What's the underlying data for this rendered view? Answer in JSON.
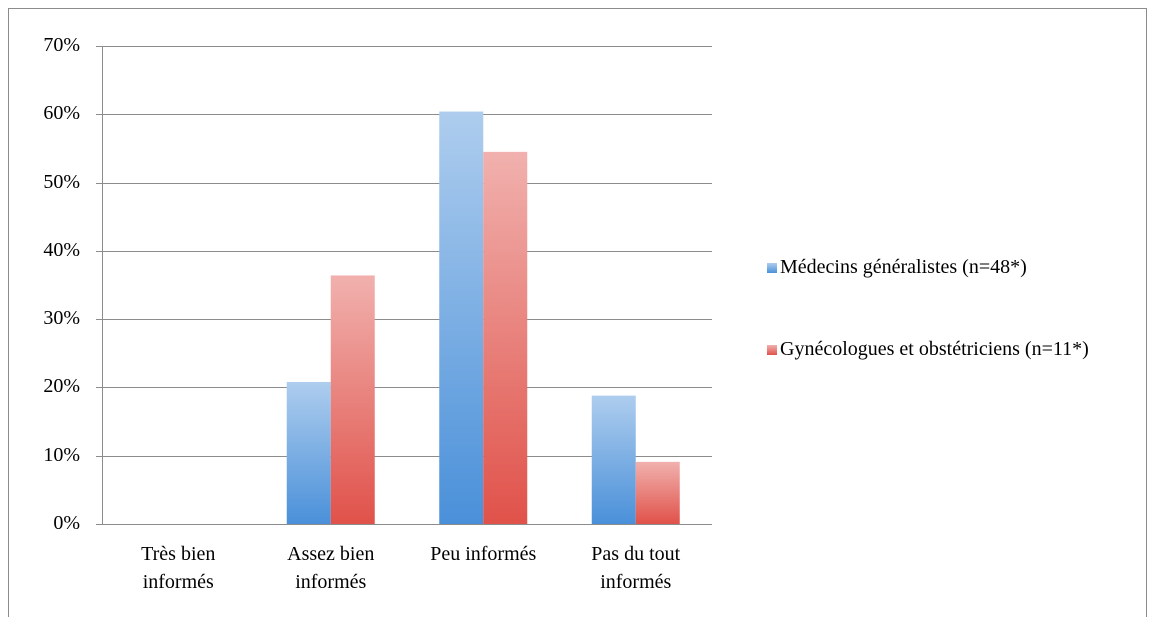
{
  "chart_data": {
    "type": "bar",
    "categories": [
      "Très bien informés",
      "Assez bien informés",
      "Peu informés",
      "Pas du tout informés"
    ],
    "series": [
      {
        "name": "Médecins généralistes (n=48*)",
        "color": "#4a90d9",
        "values": [
          0,
          20.8,
          60.4,
          18.8
        ]
      },
      {
        "name": "Gynécologues et obstétriciens (n=11*)",
        "color": "#e0524a",
        "values": [
          0,
          36.4,
          54.5,
          9.1
        ]
      }
    ],
    "ylim": [
      0,
      70
    ],
    "yticks": [
      {
        "value": 0,
        "label": "0%"
      },
      {
        "value": 10,
        "label": "10%"
      },
      {
        "value": 20,
        "label": "20%"
      },
      {
        "value": 30,
        "label": "30%"
      },
      {
        "value": 40,
        "label": "40%"
      },
      {
        "value": 50,
        "label": "50%"
      },
      {
        "value": 60,
        "label": "60%"
      },
      {
        "value": 70,
        "label": "70%"
      }
    ],
    "grid": true,
    "legend": "right"
  }
}
